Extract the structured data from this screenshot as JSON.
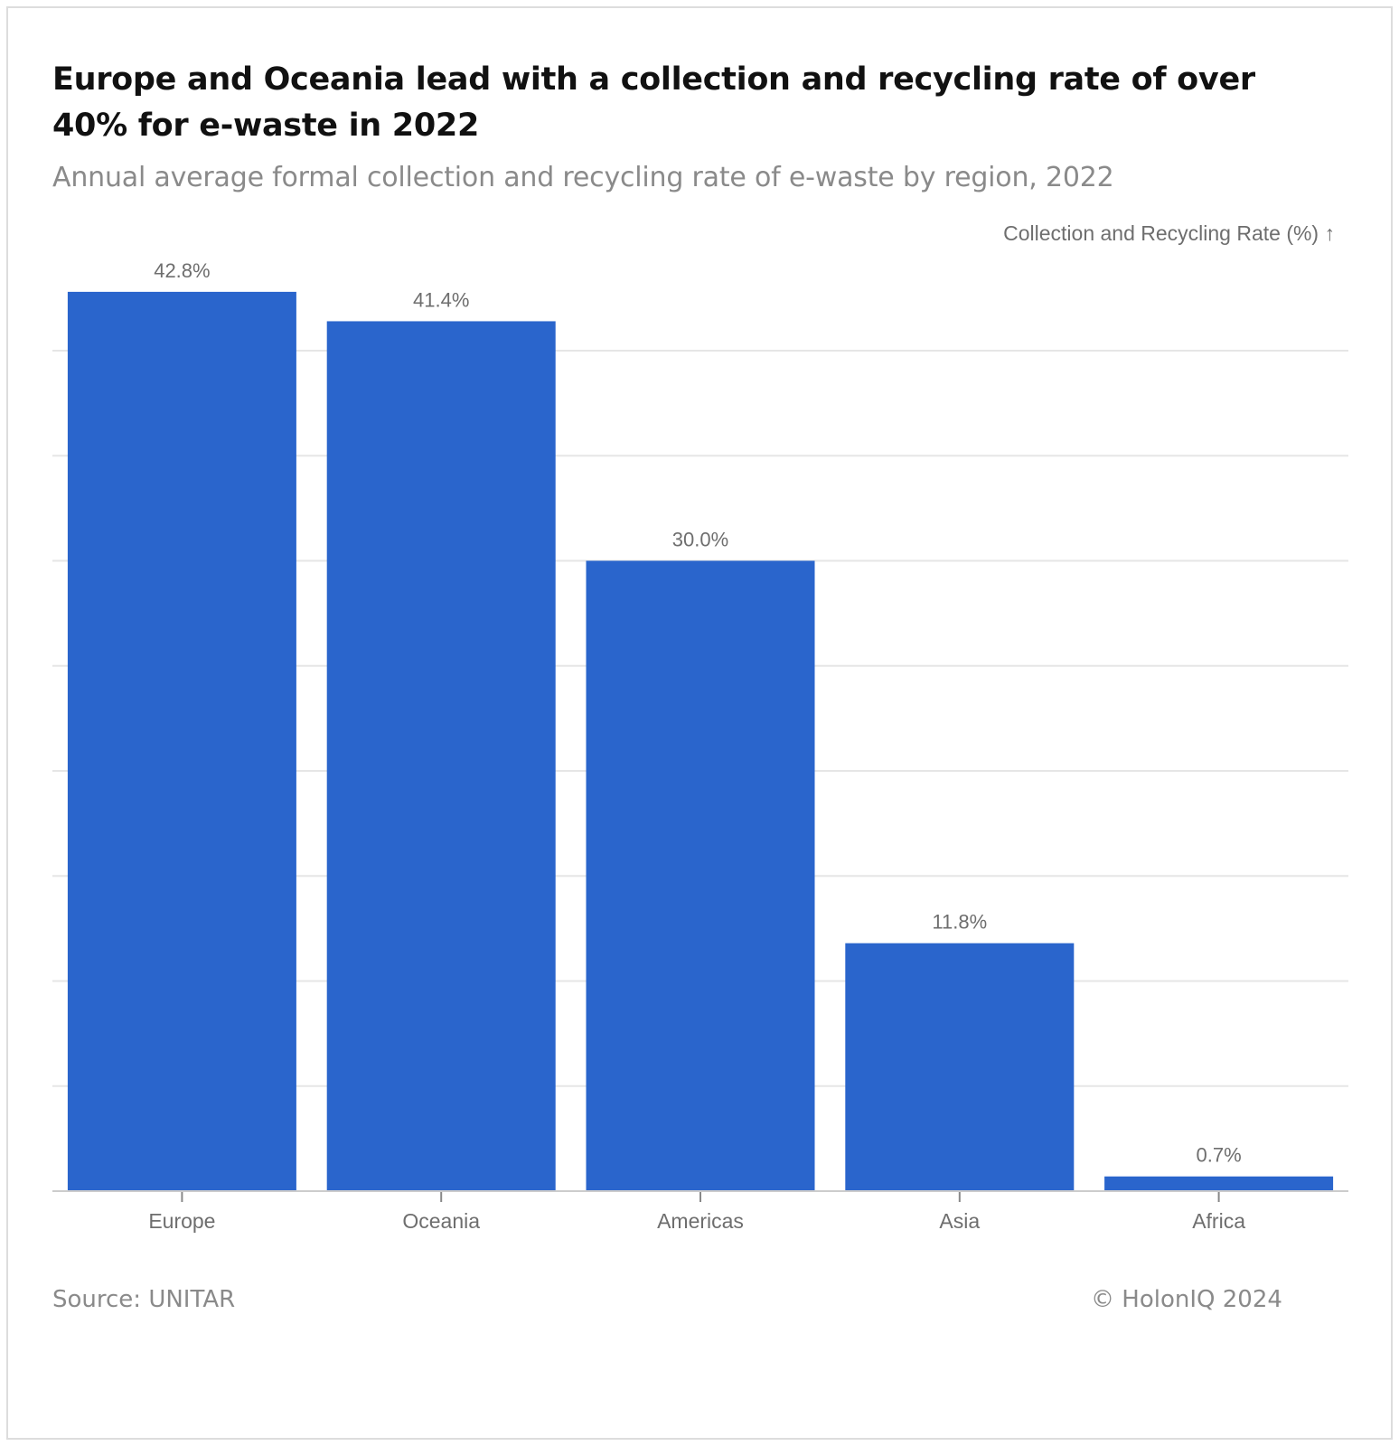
{
  "title": "Europe and Oceania lead with a collection and recycling rate of over 40% for e-waste in 2022",
  "subtitle": "Annual average formal collection and recycling rate of e-waste by region, 2022",
  "axis_label": "Collection and Recycling Rate (%) ↑",
  "source": "Source: UNITAR",
  "copyright": "© HolonIQ 2024",
  "colors": {
    "bar": "#2a65cc",
    "grid": "#e6e6e6",
    "axis": "#cccccc",
    "tick": "#888888"
  },
  "chart_data": {
    "type": "bar",
    "categories": [
      "Europe",
      "Oceania",
      "Americas",
      "Asia",
      "Africa"
    ],
    "values": [
      42.8,
      41.4,
      30.0,
      11.8,
      0.7
    ],
    "value_labels": [
      "42.8%",
      "41.4%",
      "30.0%",
      "11.8%",
      "0.7%"
    ],
    "ylabel": "Collection and Recycling Rate (%)",
    "ylim": [
      0,
      40
    ],
    "grid": true,
    "gridlines": [
      5,
      10,
      15,
      20,
      25,
      30,
      35,
      40
    ],
    "legend": "none"
  }
}
